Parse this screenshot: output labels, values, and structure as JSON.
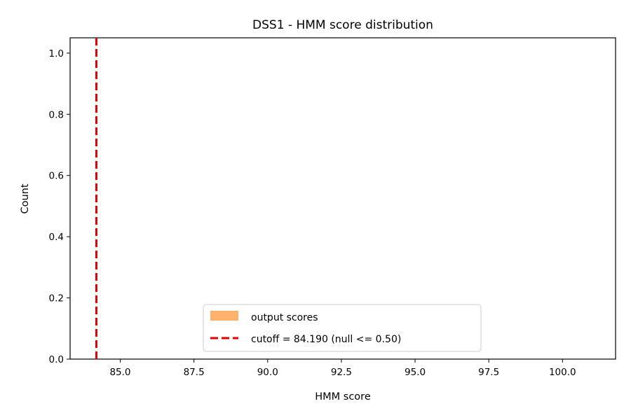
{
  "chart_data": {
    "type": "bar",
    "title": "DSS1 - HMM score distribution",
    "xlabel": "HMM score",
    "ylabel": "Count",
    "xlim": [
      83.3,
      101.8
    ],
    "ylim": [
      0.0,
      1.05
    ],
    "xticks": [
      "85.0",
      "87.5",
      "90.0",
      "92.5",
      "95.0",
      "97.5",
      "100.0"
    ],
    "yticks": [
      "0.0",
      "0.2",
      "0.4",
      "0.6",
      "0.8",
      "1.0"
    ],
    "grid": false,
    "legend_position": "lower-center",
    "series": [
      {
        "name": "output scores",
        "kind": "histogram",
        "color": "#ffb26e",
        "values": []
      }
    ],
    "annotations": [
      {
        "kind": "vertical-line",
        "x": 84.19,
        "color": "#e00000",
        "style": "dashed",
        "label": "cutoff = 84.190 (null <= 0.50)"
      }
    ]
  }
}
